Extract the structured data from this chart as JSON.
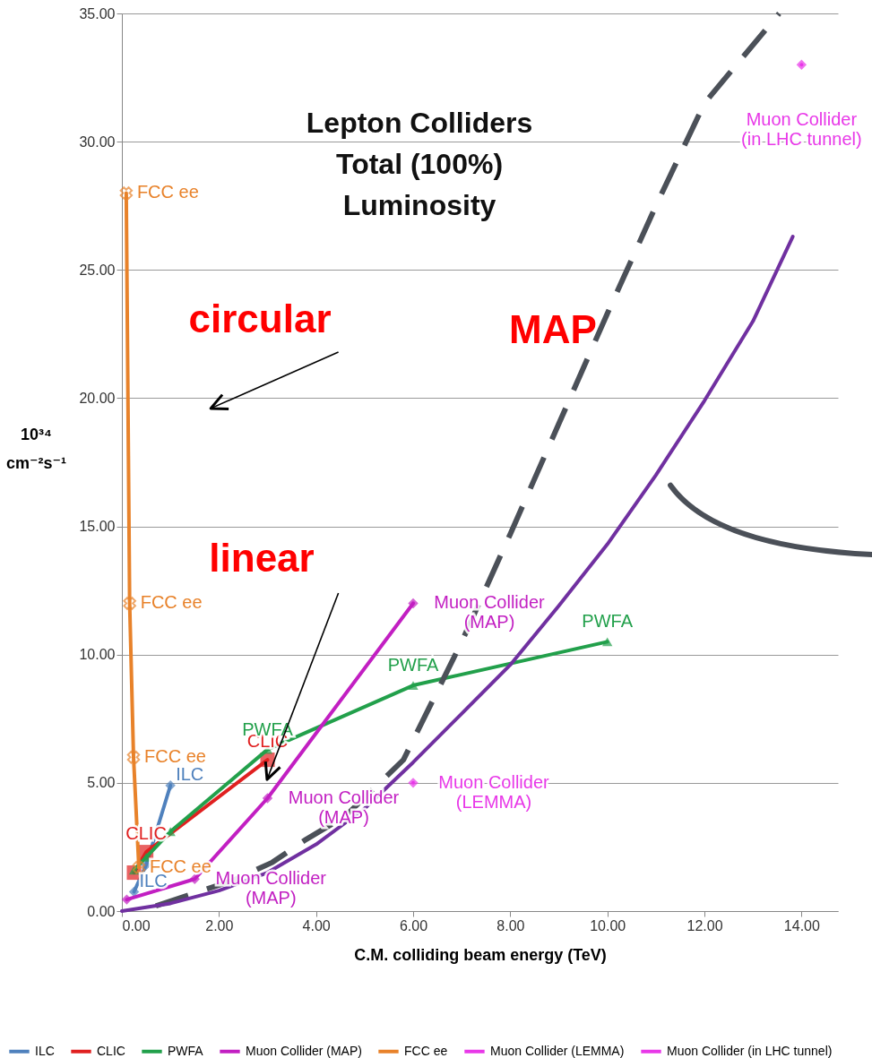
{
  "chart_data": {
    "type": "line",
    "title": "Lepton Colliders\nTotal (100%)\nLuminosity",
    "xlabel": "C.M. colliding beam energy (TeV)",
    "ylabel": "10³⁴\ncm⁻²s⁻¹",
    "xlim": [
      0,
      14.75
    ],
    "ylim": [
      0,
      35
    ],
    "xticks": [
      {
        "value": 0,
        "label": "0.00"
      },
      {
        "value": 2,
        "label": "2.00"
      },
      {
        "value": 4,
        "label": "4.00"
      },
      {
        "value": 6,
        "label": "6.00"
      },
      {
        "value": 8,
        "label": "8.00"
      },
      {
        "value": 10,
        "label": "10.00"
      },
      {
        "value": 12,
        "label": "12.00"
      },
      {
        "value": 14,
        "label": "14.00"
      }
    ],
    "yticks": [
      {
        "value": 0,
        "label": "0.00"
      },
      {
        "value": 5,
        "label": "5.00"
      },
      {
        "value": 10,
        "label": "10.00"
      },
      {
        "value": 15,
        "label": "15.00"
      },
      {
        "value": 20,
        "label": "20.00"
      },
      {
        "value": 25,
        "label": "25.00"
      },
      {
        "value": 30,
        "label": "30.00"
      },
      {
        "value": 35,
        "label": "35.00"
      }
    ],
    "grid": "y",
    "legend": "bottom",
    "annotations": [
      "circular",
      "linear",
      "MAP"
    ],
    "series": [
      {
        "name": "ILC",
        "color": "#4f81bd",
        "marker": "diamond",
        "x": [
          0.25,
          0.5,
          1.0
        ],
        "values": [
          0.75,
          1.8,
          4.9
        ],
        "value_labels": [
          "ILC",
          null,
          "ILC"
        ]
      },
      {
        "name": "CLIC",
        "color": "#e02020",
        "marker": "square",
        "x": [
          0.25,
          0.5,
          3.0
        ],
        "values": [
          1.5,
          2.3,
          5.9
        ],
        "value_labels": [
          null,
          "CLIC",
          "CLIC"
        ]
      },
      {
        "name": "PWFA",
        "color": "#22a04b",
        "marker": "triangle",
        "x": [
          0.25,
          0.5,
          1,
          3,
          6,
          10
        ],
        "values": [
          1.6,
          2.1,
          3.1,
          6.3,
          8.8,
          10.5
        ],
        "value_labels": [
          null,
          null,
          null,
          "PWFA",
          "PWFA",
          "PWFA"
        ]
      },
      {
        "name": "Muon Collider (MAP)",
        "color": "#c21fc2",
        "marker": "diamond",
        "x": [
          0.1,
          1.5,
          3,
          6
        ],
        "values": [
          0.45,
          1.25,
          4.4,
          12
        ],
        "value_labels": [
          null,
          "Muon Collider\n(MAP)",
          "Muon Collider\n(MAP)",
          "Muon Collider\n(MAP)"
        ]
      },
      {
        "name": "FCC ee",
        "color": "#e8822a",
        "marker": "cross",
        "x": [
          0.09,
          0.16,
          0.24,
          0.35
        ],
        "values": [
          28,
          12,
          6,
          1.7
        ],
        "value_labels": [
          "FCC ee",
          "FCC ee",
          "FCC ee",
          "FCC ee"
        ]
      },
      {
        "name": "Muon Collider (LEMMA)",
        "color": "#e838e8",
        "marker": "diamond",
        "x": [
          6
        ],
        "values": [
          5
        ],
        "value_labels": [
          "Muon Collider\n(LEMMA)"
        ]
      },
      {
        "name": "Muon Collider (in LHC tunnel)",
        "color": "#e838e8",
        "marker": "diamond",
        "x": [
          14
        ],
        "values": [
          33
        ],
        "value_labels": [
          "Muon Collider\n(in LHC tunnel)"
        ]
      },
      {
        "color": "#4b5058",
        "line_style": "dashed",
        "marker": "none",
        "x": [
          0.7,
          2.3,
          3.1,
          3.8,
          4.6,
          5.8,
          7,
          8,
          9,
          10,
          11,
          12,
          13.54
        ],
        "values": [
          0.2,
          1.2,
          1.9,
          2.8,
          3.7,
          5.9,
          10.5,
          14.7,
          19,
          23.3,
          27.5,
          31.5,
          35
        ]
      },
      {
        "color": "#7030a0",
        "marker": "none",
        "x": [
          0,
          1,
          2,
          3,
          4,
          5,
          6,
          7,
          8,
          9,
          10,
          11,
          12,
          13,
          13.82
        ],
        "values": [
          0,
          0.3,
          0.8,
          1.5,
          2.6,
          4,
          5.8,
          7.7,
          9.6,
          11.9,
          14.3,
          17,
          19.9,
          23,
          26.3
        ]
      }
    ]
  }
}
